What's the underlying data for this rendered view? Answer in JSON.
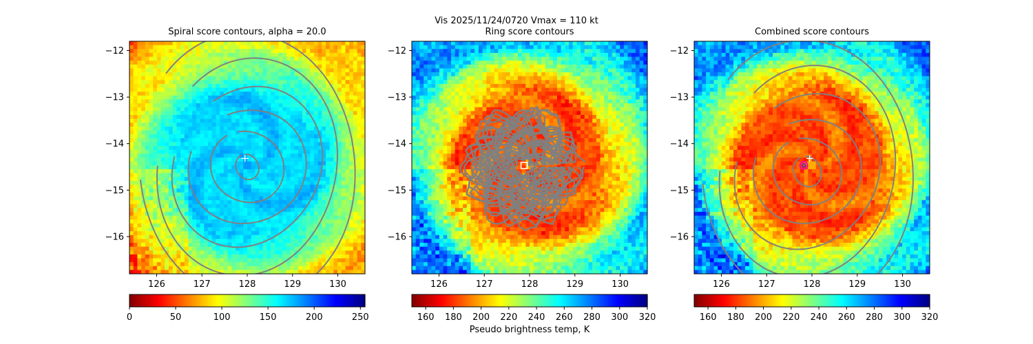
{
  "figure": {
    "suptitle": "Vis  2025/11/24/0720    Vmax = 110 kt"
  },
  "colors": {
    "contour": "#808080",
    "marker_plus": "#ffffff",
    "marker_square": "#ffffff",
    "marker_circle_edge": "#ff00aa",
    "marker_circle_inner": "#2020ff"
  },
  "chart_data": [
    {
      "type": "heatmap",
      "title": "Spiral score contours, alpha = 20.0",
      "xlim": [
        125.4,
        130.6
      ],
      "ylim": [
        -16.8,
        -11.8
      ],
      "xticks": [
        "126",
        "127",
        "128",
        "129",
        "130"
      ],
      "yticks": [
        "−12",
        "−13",
        "−14",
        "−15",
        "−16"
      ],
      "colormap": "jet_r",
      "colorbar": {
        "range": [
          0,
          255
        ],
        "ticks": [
          "0",
          "50",
          "100",
          "150",
          "200",
          "250"
        ],
        "label": ""
      },
      "scene": {
        "center": [
          128.0,
          -14.45
        ],
        "eye_value": 185,
        "core_value": 170,
        "outer_value": 100,
        "background_value": 50
      },
      "contours": {
        "center": [
          128.0,
          -14.5
        ],
        "radii_deg": [
          0.25,
          0.75,
          1.2,
          1.6,
          2.05,
          2.5
        ],
        "kind": "spiral"
      },
      "markers": [
        {
          "type": "plus",
          "x": 127.95,
          "y": -14.32
        }
      ]
    },
    {
      "type": "heatmap",
      "title": "Ring score contours",
      "xlim": [
        125.4,
        130.6
      ],
      "ylim": [
        -16.8,
        -11.8
      ],
      "xticks": [
        "126",
        "127",
        "128",
        "129",
        "130"
      ],
      "yticks": [
        "−12",
        "−13",
        "−14",
        "−15",
        "−16"
      ],
      "colormap": "jet_r",
      "colorbar": {
        "range": [
          150,
          320
        ],
        "ticks": [
          "160",
          "180",
          "200",
          "220",
          "240",
          "260",
          "280",
          "300",
          "320"
        ],
        "label": "Pseudo brightness temp, K"
      },
      "scene": {
        "center": [
          128.0,
          -14.45
        ],
        "eye_value": 200,
        "core_value": 185,
        "outer_value": 255,
        "background_value": 290
      },
      "contours": {
        "center": [
          127.85,
          -14.5
        ],
        "radius_deg": 1.15,
        "kind": "ring-clutter"
      },
      "markers": [
        {
          "type": "square",
          "x": 127.88,
          "y": -14.47
        }
      ]
    },
    {
      "type": "heatmap",
      "title": "Combined score contours",
      "xlim": [
        125.4,
        130.6
      ],
      "ylim": [
        -16.8,
        -11.8
      ],
      "xticks": [
        "126",
        "127",
        "128",
        "129",
        "130"
      ],
      "yticks": [
        "−12",
        "−13",
        "−14",
        "−15",
        "−16"
      ],
      "colormap": "jet_r",
      "colorbar": {
        "range": [
          150,
          320
        ],
        "ticks": [
          "160",
          "180",
          "200",
          "220",
          "240",
          "260",
          "280",
          "300",
          "320"
        ],
        "label": ""
      },
      "scene": {
        "center": [
          128.0,
          -14.45
        ],
        "eye_value": 200,
        "core_value": 185,
        "outer_value": 255,
        "background_value": 290
      },
      "contours": {
        "center": [
          127.9,
          -14.6
        ],
        "radii_deg": [
          0.3,
          0.7,
          1.1,
          1.55,
          2.0,
          2.45
        ],
        "kind": "spiral"
      },
      "markers": [
        {
          "type": "plus",
          "x": 127.95,
          "y": -14.32
        },
        {
          "type": "circle",
          "x": 127.82,
          "y": -14.47
        }
      ]
    }
  ]
}
